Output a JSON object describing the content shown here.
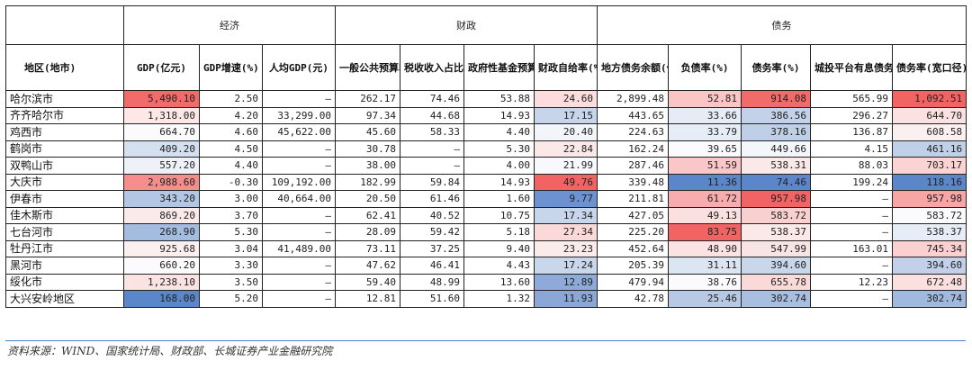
{
  "groups": [
    "经济",
    "财政",
    "债务"
  ],
  "headers": [
    "地区(地市)",
    "GDP(亿元)",
    "GDP增速(%)",
    "人均GDP(元)",
    "一般公共预算收入(亿元)",
    "税收收入占比(%)",
    "政府性基金预算收入(亿元)",
    "财政自给率(%)",
    "地方债务余额(亿元)",
    "负债率(%)",
    "债务率(%)",
    "城投平台有息债务余额(亿元)",
    "债务率(宽口径)(%)"
  ],
  "rows": [
    {
      "name": "哈尔滨市",
      "gdp": "5,490.10",
      "gdp_growth": "2.50",
      "gdp_per_capita": "—",
      "gen_budget": "262.17",
      "tax_share": "74.46",
      "fund_budget": "53.88",
      "self_sufficiency": "24.60",
      "local_debt": "2,899.48",
      "liability_ratio": "52.81",
      "debt_ratio": "914.08",
      "lgfv_debt": "565.99",
      "debt_ratio_wide": "1,092.51"
    },
    {
      "name": "齐齐哈尔市",
      "gdp": "1,318.00",
      "gdp_growth": "4.20",
      "gdp_per_capita": "33,299.00",
      "gen_budget": "97.34",
      "tax_share": "44.68",
      "fund_budget": "14.93",
      "self_sufficiency": "17.15",
      "local_debt": "443.65",
      "liability_ratio": "33.66",
      "debt_ratio": "386.56",
      "lgfv_debt": "296.27",
      "debt_ratio_wide": "644.70"
    },
    {
      "name": "鸡西市",
      "gdp": "664.70",
      "gdp_growth": "4.60",
      "gdp_per_capita": "45,622.00",
      "gen_budget": "45.60",
      "tax_share": "58.33",
      "fund_budget": "4.40",
      "self_sufficiency": "20.40",
      "local_debt": "224.63",
      "liability_ratio": "33.79",
      "debt_ratio": "378.16",
      "lgfv_debt": "136.87",
      "debt_ratio_wide": "608.58"
    },
    {
      "name": "鹤岗市",
      "gdp": "409.20",
      "gdp_growth": "4.50",
      "gdp_per_capita": "—",
      "gen_budget": "30.78",
      "tax_share": "—",
      "fund_budget": "5.30",
      "self_sufficiency": "22.84",
      "local_debt": "162.24",
      "liability_ratio": "39.65",
      "debt_ratio": "449.66",
      "lgfv_debt": "4.15",
      "debt_ratio_wide": "461.16"
    },
    {
      "name": "双鸭山市",
      "gdp": "557.20",
      "gdp_growth": "4.40",
      "gdp_per_capita": "—",
      "gen_budget": "38.00",
      "tax_share": "—",
      "fund_budget": "4.00",
      "self_sufficiency": "21.99",
      "local_debt": "287.46",
      "liability_ratio": "51.59",
      "debt_ratio": "538.31",
      "lgfv_debt": "88.03",
      "debt_ratio_wide": "703.17"
    },
    {
      "name": "大庆市",
      "gdp": "2,988.60",
      "gdp_growth": "-0.30",
      "gdp_per_capita": "109,192.00",
      "gen_budget": "182.99",
      "tax_share": "59.84",
      "fund_budget": "14.93",
      "self_sufficiency": "49.76",
      "local_debt": "339.48",
      "liability_ratio": "11.36",
      "debt_ratio": "74.46",
      "lgfv_debt": "199.24",
      "debt_ratio_wide": "118.16"
    },
    {
      "name": "伊春市",
      "gdp": "343.20",
      "gdp_growth": "3.00",
      "gdp_per_capita": "40,664.00",
      "gen_budget": "20.50",
      "tax_share": "61.46",
      "fund_budget": "1.60",
      "self_sufficiency": "9.77",
      "local_debt": "211.81",
      "liability_ratio": "61.72",
      "debt_ratio": "957.98",
      "lgfv_debt": "—",
      "debt_ratio_wide": "957.98"
    },
    {
      "name": "佳木斯市",
      "gdp": "869.20",
      "gdp_growth": "3.70",
      "gdp_per_capita": "—",
      "gen_budget": "62.41",
      "tax_share": "40.52",
      "fund_budget": "10.75",
      "self_sufficiency": "17.34",
      "local_debt": "427.05",
      "liability_ratio": "49.13",
      "debt_ratio": "583.72",
      "lgfv_debt": "—",
      "debt_ratio_wide": "583.72"
    },
    {
      "name": "七台河市",
      "gdp": "268.90",
      "gdp_growth": "5.30",
      "gdp_per_capita": "—",
      "gen_budget": "28.09",
      "tax_share": "59.42",
      "fund_budget": "5.18",
      "self_sufficiency": "27.34",
      "local_debt": "225.20",
      "liability_ratio": "83.75",
      "debt_ratio": "538.37",
      "lgfv_debt": "—",
      "debt_ratio_wide": "538.37"
    },
    {
      "name": "牡丹江市",
      "gdp": "925.68",
      "gdp_growth": "3.04",
      "gdp_per_capita": "41,489.00",
      "gen_budget": "73.11",
      "tax_share": "37.25",
      "fund_budget": "9.40",
      "self_sufficiency": "23.23",
      "local_debt": "452.64",
      "liability_ratio": "48.90",
      "debt_ratio": "547.99",
      "lgfv_debt": "163.01",
      "debt_ratio_wide": "745.34"
    },
    {
      "name": "黑河市",
      "gdp": "660.20",
      "gdp_growth": "3.30",
      "gdp_per_capita": "—",
      "gen_budget": "47.62",
      "tax_share": "46.41",
      "fund_budget": "4.43",
      "self_sufficiency": "17.24",
      "local_debt": "205.39",
      "liability_ratio": "31.11",
      "debt_ratio": "394.60",
      "lgfv_debt": "—",
      "debt_ratio_wide": "394.60"
    },
    {
      "name": "绥化市",
      "gdp": "1,238.10",
      "gdp_growth": "3.50",
      "gdp_per_capita": "—",
      "gen_budget": "59.40",
      "tax_share": "48.99",
      "fund_budget": "13.60",
      "self_sufficiency": "12.89",
      "local_debt": "479.94",
      "liability_ratio": "38.76",
      "debt_ratio": "655.78",
      "lgfv_debt": "12.23",
      "debt_ratio_wide": "672.48"
    },
    {
      "name": "大兴安岭地区",
      "gdp": "168.00",
      "gdp_growth": "5.20",
      "gdp_per_capita": "—",
      "gen_budget": "12.81",
      "tax_share": "51.60",
      "fund_budget": "1.32",
      "self_sufficiency": "11.93",
      "local_debt": "42.78",
      "liability_ratio": "25.46",
      "debt_ratio": "302.74",
      "lgfv_debt": "—",
      "debt_ratio_wide": "302.74"
    }
  ],
  "heat_colors": {
    "gdp": [
      "#f26b6b",
      "#fde7e7",
      "#fbfbfd",
      "#d4dfef",
      "#eef2f8",
      "#f58d8d",
      "#b3c6e4",
      "#fbeaea",
      "#a3bcdf",
      "#fcefef",
      "#fbfbfd",
      "#fce3e3",
      "#5b86c9"
    ],
    "self_sufficiency": [
      "#fcdcdc",
      "#c7d5ea",
      "#f2f5fa",
      "#fbe8e8",
      "#f7f9fc",
      "#f26464",
      "#6c93cf",
      "#c8d6eb",
      "#fbd9d9",
      "#fcebeb",
      "#c9d7eb",
      "#8eaad8",
      "#8aa7d6"
    ],
    "liability_ratio": [
      "#f9c5c5",
      "#e5ecf5",
      "#e6edf6",
      "#fbfbfd",
      "#f9c7c7",
      "#5b86c9",
      "#f7adad",
      "#fbe0e0",
      "#f26464",
      "#fbe3e3",
      "#dce5f2",
      "#fbfbfd",
      "#b7c9e5"
    ],
    "debt_ratio": [
      "#f26b6b",
      "#c3d2e9",
      "#bfcfe8",
      "#f3f6fa",
      "#fbe8e8",
      "#5b86c9",
      "#f26464",
      "#f9d0d0",
      "#fbe8e8",
      "#f8e4e4",
      "#c9d7eb",
      "#fad9d9",
      "#a8bfe0"
    ],
    "debt_ratio_wide": [
      "#f26464",
      "#fbe1e1",
      "#fbf0f0",
      "#c0d0e8",
      "#fbd3d3",
      "#5b86c9",
      "#f7a5a5",
      "#fbfbfd",
      "#e6edf6",
      "#fad0d0",
      "#c2d1e9",
      "#fbe0e0",
      "#a0badf"
    ]
  },
  "footer": {
    "source": "资料来源：WIND、国家统计局、财政部、长城证券产业金融研究院"
  }
}
